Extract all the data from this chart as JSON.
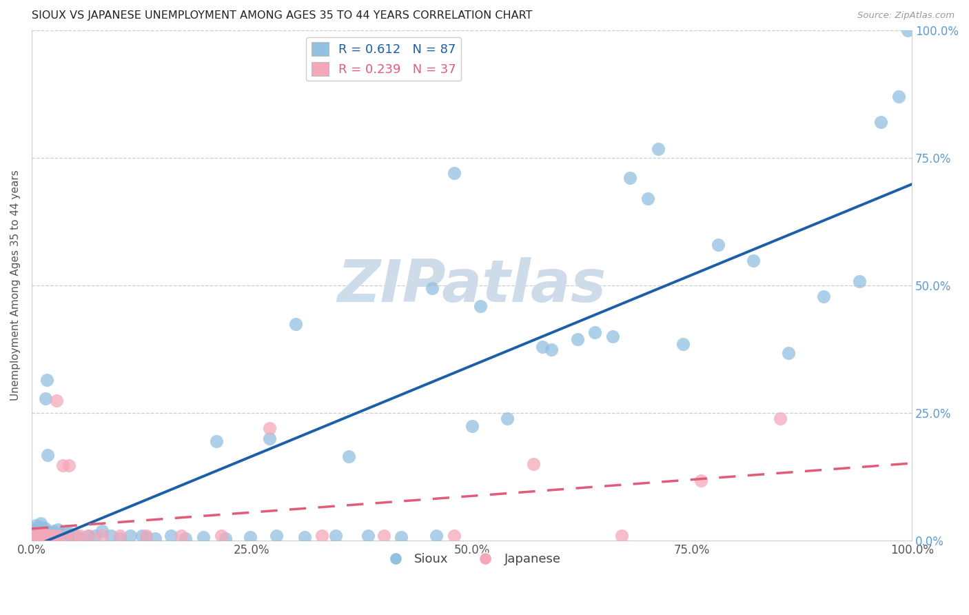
{
  "title": "SIOUX VS JAPANESE UNEMPLOYMENT AMONG AGES 35 TO 44 YEARS CORRELATION CHART",
  "source": "Source: ZipAtlas.com",
  "ylabel": "Unemployment Among Ages 35 to 44 years",
  "xlim": [
    0.0,
    1.0
  ],
  "ylim": [
    0.0,
    1.0
  ],
  "xtick_positions": [
    0.0,
    0.25,
    0.5,
    0.75,
    1.0
  ],
  "xtick_labels": [
    "0.0%",
    "25.0%",
    "50.0%",
    "75.0%",
    "100.0%"
  ],
  "ytick_positions": [
    0.0,
    0.25,
    0.5,
    0.75,
    1.0
  ],
  "ytick_right_labels": [
    "0.0%",
    "25.0%",
    "50.0%",
    "75.0%",
    "100.0%"
  ],
  "sioux_R": 0.612,
  "sioux_N": 87,
  "japanese_R": 0.239,
  "japanese_N": 37,
  "sioux_color": "#92c0e0",
  "japanese_color": "#f4a7b9",
  "sioux_line_color": "#1a5fa8",
  "japanese_line_color": "#e05c7a",
  "right_tick_color": "#5b9bd5",
  "watermark_text": "ZIPatlas",
  "watermark_color": "#cddce8",
  "background_color": "#ffffff",
  "grid_color": "#cccccc",
  "sioux_x": [
    0.003,
    0.004,
    0.004,
    0.005,
    0.005,
    0.005,
    0.006,
    0.006,
    0.007,
    0.007,
    0.008,
    0.008,
    0.009,
    0.01,
    0.01,
    0.011,
    0.012,
    0.012,
    0.013,
    0.014,
    0.015,
    0.015,
    0.016,
    0.017,
    0.018,
    0.019,
    0.02,
    0.021,
    0.022,
    0.023,
    0.025,
    0.025,
    0.027,
    0.03,
    0.033,
    0.037,
    0.04,
    0.044,
    0.05,
    0.058,
    0.064,
    0.072,
    0.08,
    0.09,
    0.1,
    0.112,
    0.125,
    0.14,
    0.158,
    0.175,
    0.195,
    0.22,
    0.248,
    0.278,
    0.31,
    0.345,
    0.382,
    0.42,
    0.46,
    0.5,
    0.54,
    0.58,
    0.62,
    0.66,
    0.7,
    0.74,
    0.78,
    0.82,
    0.86,
    0.9,
    0.94,
    0.965,
    0.985,
    0.995,
    0.59,
    0.64,
    0.68,
    0.712,
    0.51,
    0.455,
    0.48,
    0.27,
    0.21,
    0.3,
    0.36,
    0.13,
    0.045
  ],
  "sioux_y": [
    0.018,
    0.022,
    0.01,
    0.012,
    0.025,
    0.03,
    0.008,
    0.015,
    0.012,
    0.022,
    0.01,
    0.016,
    0.008,
    0.028,
    0.035,
    0.022,
    0.018,
    0.01,
    0.01,
    0.015,
    0.02,
    0.025,
    0.278,
    0.315,
    0.168,
    0.018,
    0.01,
    0.015,
    0.01,
    0.008,
    0.02,
    0.01,
    0.015,
    0.022,
    0.01,
    0.018,
    0.02,
    0.01,
    0.01,
    0.005,
    0.01,
    0.01,
    0.02,
    0.01,
    0.005,
    0.01,
    0.01,
    0.005,
    0.01,
    0.005,
    0.008,
    0.005,
    0.008,
    0.01,
    0.008,
    0.01,
    0.01,
    0.008,
    0.01,
    0.225,
    0.24,
    0.38,
    0.395,
    0.4,
    0.67,
    0.385,
    0.58,
    0.548,
    0.368,
    0.478,
    0.508,
    0.82,
    0.87,
    1.0,
    0.375,
    0.408,
    0.71,
    0.768,
    0.46,
    0.495,
    0.72,
    0.2,
    0.195,
    0.425,
    0.165,
    0.008,
    0.008
  ],
  "japanese_x": [
    0.004,
    0.005,
    0.006,
    0.007,
    0.008,
    0.009,
    0.01,
    0.011,
    0.012,
    0.014,
    0.015,
    0.016,
    0.018,
    0.02,
    0.022,
    0.025,
    0.028,
    0.03,
    0.035,
    0.038,
    0.042,
    0.048,
    0.055,
    0.065,
    0.08,
    0.1,
    0.13,
    0.17,
    0.215,
    0.27,
    0.33,
    0.4,
    0.48,
    0.57,
    0.67,
    0.76,
    0.85
  ],
  "japanese_y": [
    0.01,
    0.008,
    0.005,
    0.01,
    0.008,
    0.01,
    0.012,
    0.01,
    0.012,
    0.01,
    0.012,
    0.01,
    0.008,
    0.01,
    0.01,
    0.01,
    0.275,
    0.01,
    0.148,
    0.008,
    0.148,
    0.01,
    0.01,
    0.01,
    0.01,
    0.01,
    0.01,
    0.01,
    0.01,
    0.22,
    0.01,
    0.01,
    0.01,
    0.15,
    0.01,
    0.118,
    0.24
  ],
  "sioux_line_x0": 0.0,
  "sioux_line_x1": 1.0,
  "japanese_line_x0": 0.0,
  "japanese_line_x1": 1.0
}
